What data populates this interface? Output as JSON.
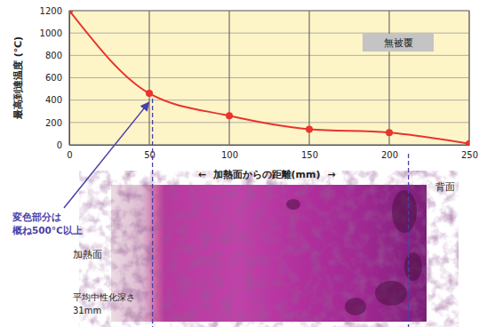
{
  "chart_data": {
    "type": "line",
    "x": [
      0,
      50,
      100,
      150,
      200,
      250
    ],
    "series": [
      {
        "name": "無被覆",
        "color": "#e8342b",
        "marker": "circle",
        "values": [
          1200,
          460,
          260,
          140,
          110,
          10
        ]
      }
    ],
    "xlim": [
      0,
      250
    ],
    "ylim": [
      0,
      1200
    ],
    "xticks": [
      0,
      50,
      100,
      150,
      200,
      250
    ],
    "yticks": [
      0,
      200,
      400,
      600,
      800,
      1000,
      1200
    ],
    "grid": true,
    "legend": "upper right",
    "x_label": "←  加熱面からの距離(mm)  →",
    "y_label": "最高到達温度 (℃)",
    "reference_x": [
      52,
      212
    ],
    "annotation": [
      "変色部分は",
      "概ね500℃以上"
    ],
    "photo_labels": {
      "heated_face": "加熱面",
      "back_face": "背面",
      "depth_lines": [
        "平均中性化深さ",
        "31mm"
      ]
    }
  }
}
